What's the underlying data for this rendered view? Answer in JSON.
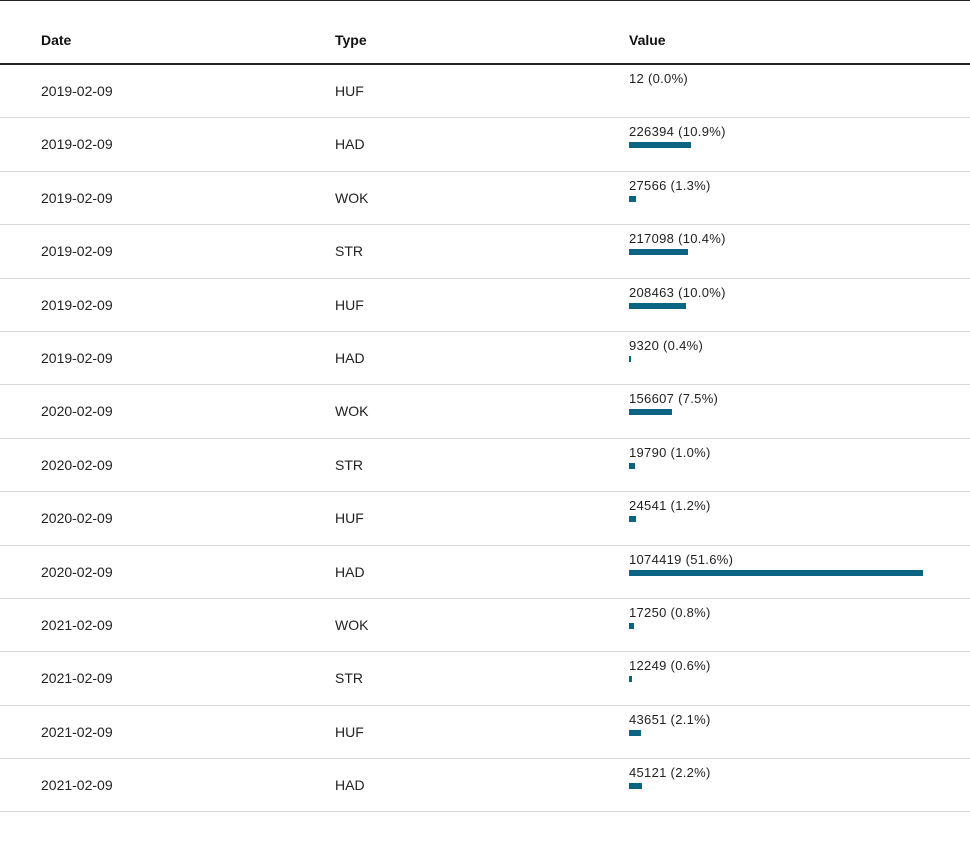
{
  "chart_data": {
    "type": "table",
    "columns": [
      "Date",
      "Type",
      "Value"
    ],
    "bar_color": "#0b6482",
    "bar_max_percent": 51.6,
    "rows": [
      {
        "date": "2019-02-09",
        "type": "HUF",
        "value": 12,
        "percent": 0.0,
        "label": "12 (0.0%)"
      },
      {
        "date": "2019-02-09",
        "type": "HAD",
        "value": 226394,
        "percent": 10.9,
        "label": "226394 (10.9%)"
      },
      {
        "date": "2019-02-09",
        "type": "WOK",
        "value": 27566,
        "percent": 1.3,
        "label": "27566 (1.3%)"
      },
      {
        "date": "2019-02-09",
        "type": "STR",
        "value": 217098,
        "percent": 10.4,
        "label": "217098 (10.4%)"
      },
      {
        "date": "2019-02-09",
        "type": "HUF",
        "value": 208463,
        "percent": 10.0,
        "label": "208463 (10.0%)"
      },
      {
        "date": "2019-02-09",
        "type": "HAD",
        "value": 9320,
        "percent": 0.4,
        "label": "9320 (0.4%)"
      },
      {
        "date": "2020-02-09",
        "type": "WOK",
        "value": 156607,
        "percent": 7.5,
        "label": "156607 (7.5%)"
      },
      {
        "date": "2020-02-09",
        "type": "STR",
        "value": 19790,
        "percent": 1.0,
        "label": "19790 (1.0%)"
      },
      {
        "date": "2020-02-09",
        "type": "HUF",
        "value": 24541,
        "percent": 1.2,
        "label": "24541 (1.2%)"
      },
      {
        "date": "2020-02-09",
        "type": "HAD",
        "value": 1074419,
        "percent": 51.6,
        "label": "1074419 (51.6%)"
      },
      {
        "date": "2021-02-09",
        "type": "WOK",
        "value": 17250,
        "percent": 0.8,
        "label": "17250 (0.8%)"
      },
      {
        "date": "2021-02-09",
        "type": "STR",
        "value": 12249,
        "percent": 0.6,
        "label": "12249 (0.6%)"
      },
      {
        "date": "2021-02-09",
        "type": "HUF",
        "value": 43651,
        "percent": 2.1,
        "label": "43651 (2.1%)"
      },
      {
        "date": "2021-02-09",
        "type": "HAD",
        "value": 45121,
        "percent": 2.2,
        "label": "45121 (2.2%)"
      }
    ]
  }
}
